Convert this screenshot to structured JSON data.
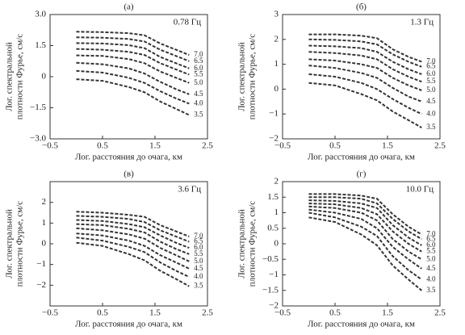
{
  "chart_data": [
    {
      "type": "line",
      "panel": "(а)",
      "annotation": "0.78 Гц",
      "xlabel": "Лог. расстояния до очага, км",
      "ylabel": [
        "Лог. спектральной",
        "плотности Фурье, см/с"
      ],
      "color": "#333333",
      "xlim": [
        -0.5,
        2.5
      ],
      "ylim": [
        -3,
        3
      ],
      "xticks": [
        {
          "value": -0.5,
          "label": "−0.5"
        },
        0.5,
        1.5,
        2.5
      ],
      "yticks": [
        {
          "value": -3,
          "label": "−3.0"
        },
        {
          "value": -1.5,
          "label": "−1.5"
        },
        0,
        1.5,
        {
          "value": 3,
          "label": "3.0"
        }
      ],
      "x": [
        0,
        0.5,
        1.0,
        1.3,
        1.6,
        1.9,
        2.15
      ],
      "series": [
        {
          "name": "7.0",
          "values": [
            2.17,
            2.15,
            2.1,
            2.0,
            1.6,
            1.3,
            1.05
          ]
        },
        {
          "name": "6.5",
          "values": [
            1.9,
            1.88,
            1.82,
            1.7,
            1.3,
            1.0,
            0.75
          ]
        },
        {
          "name": "6.0",
          "values": [
            1.62,
            1.6,
            1.52,
            1.38,
            0.95,
            0.65,
            0.4
          ]
        },
        {
          "name": "5.5",
          "values": [
            1.34,
            1.3,
            1.2,
            1.05,
            0.65,
            0.35,
            0.1
          ]
        },
        {
          "name": "5.0",
          "values": [
            1.03,
            1.0,
            0.85,
            0.65,
            0.25,
            -0.05,
            -0.3
          ]
        },
        {
          "name": "4.5",
          "values": [
            0.67,
            0.6,
            0.4,
            0.15,
            -0.25,
            -0.6,
            -0.85
          ]
        },
        {
          "name": "4.0",
          "values": [
            0.28,
            0.2,
            -0.05,
            -0.3,
            -0.7,
            -1.05,
            -1.3
          ]
        },
        {
          "name": "3.5",
          "values": [
            -0.12,
            -0.2,
            -0.5,
            -0.75,
            -1.2,
            -1.55,
            -1.85
          ]
        }
      ]
    },
    {
      "type": "line",
      "panel": "(б)",
      "annotation": "1.3 Гц",
      "xlabel": "Лог. расстояния до очага, км",
      "ylabel": [
        "Лог. спектральной",
        "плотности Фурье, см/с"
      ],
      "color": "#333333",
      "xlim": [
        -0.5,
        2.5
      ],
      "ylim": [
        -2,
        3
      ],
      "xticks": [
        {
          "value": -0.5,
          "label": "−0.5"
        },
        0.5,
        1.5,
        2.5
      ],
      "yticks": [
        {
          "value": -2,
          "label": "−2"
        },
        {
          "value": -1,
          "label": "−1"
        },
        0,
        1,
        2,
        3
      ],
      "x": [
        0,
        0.5,
        1.0,
        1.3,
        1.6,
        1.9,
        2.15
      ],
      "series": [
        {
          "name": "7.0",
          "values": [
            2.2,
            2.2,
            2.15,
            2.05,
            1.6,
            1.3,
            1.1
          ]
        },
        {
          "name": "6.5",
          "values": [
            2.0,
            1.98,
            1.92,
            1.8,
            1.4,
            1.1,
            0.9
          ]
        },
        {
          "name": "6.0",
          "values": [
            1.75,
            1.72,
            1.65,
            1.5,
            1.1,
            0.8,
            0.6
          ]
        },
        {
          "name": "5.5",
          "values": [
            1.5,
            1.45,
            1.35,
            1.2,
            0.8,
            0.5,
            0.3
          ]
        },
        {
          "name": "5.0",
          "values": [
            1.2,
            1.15,
            1.0,
            0.85,
            0.45,
            0.15,
            -0.05
          ]
        },
        {
          "name": "4.5",
          "values": [
            0.95,
            0.85,
            0.65,
            0.45,
            0.05,
            -0.3,
            -0.5
          ]
        },
        {
          "name": "4.0",
          "values": [
            0.6,
            0.5,
            0.25,
            0.0,
            -0.4,
            -0.75,
            -1.0
          ]
        },
        {
          "name": "3.5",
          "values": [
            0.25,
            0.15,
            -0.2,
            -0.45,
            -0.9,
            -1.25,
            -1.55
          ]
        }
      ]
    },
    {
      "type": "line",
      "panel": "(в)",
      "annotation": "3.6 Гц",
      "xlabel": "Лог. расстояния до очага, км",
      "ylabel": [
        "Лог. спектральной",
        "плотности Фурье, см/с"
      ],
      "color": "#333333",
      "xlim": [
        -0.5,
        2.5
      ],
      "ylim": [
        -3,
        3
      ],
      "xticks": [
        {
          "value": -0.5,
          "label": "−0.5"
        },
        0.5,
        1.5,
        2.5
      ],
      "yticks": [
        {
          "value": -2,
          "label": "−2"
        },
        {
          "value": -1,
          "label": "−1"
        },
        0,
        1,
        2
      ],
      "x": [
        0,
        0.5,
        1.0,
        1.3,
        1.6,
        1.9,
        2.15
      ],
      "series": [
        {
          "name": "7.0",
          "values": [
            1.55,
            1.5,
            1.4,
            1.3,
            0.9,
            0.6,
            0.35
          ]
        },
        {
          "name": "6.5",
          "values": [
            1.35,
            1.3,
            1.2,
            1.05,
            0.65,
            0.35,
            0.1
          ]
        },
        {
          "name": "6.0",
          "values": [
            1.15,
            1.1,
            0.95,
            0.8,
            0.4,
            0.05,
            -0.2
          ]
        },
        {
          "name": "5.5",
          "values": [
            0.95,
            0.9,
            0.72,
            0.55,
            0.1,
            -0.25,
            -0.5
          ]
        },
        {
          "name": "5.0",
          "values": [
            0.75,
            0.65,
            0.45,
            0.25,
            -0.2,
            -0.55,
            -0.85
          ]
        },
        {
          "name": "4.5",
          "values": [
            0.5,
            0.4,
            0.15,
            -0.1,
            -0.55,
            -0.9,
            -1.2
          ]
        },
        {
          "name": "4.0",
          "values": [
            0.3,
            0.15,
            -0.15,
            -0.4,
            -0.9,
            -1.3,
            -1.6
          ]
        },
        {
          "name": "3.5",
          "values": [
            0.05,
            -0.1,
            -0.5,
            -0.8,
            -1.3,
            -1.7,
            -2.05
          ]
        }
      ]
    },
    {
      "type": "line",
      "panel": "(г)",
      "annotation": "10.0 Гц",
      "xlabel": "Лог. расстояния до очага, км",
      "ylabel": [
        "Лог. спектральной",
        "плотности Фурье, см/с"
      ],
      "color": "#333333",
      "xlim": [
        -0.5,
        2.5
      ],
      "ylim": [
        -2,
        2
      ],
      "xticks": [
        {
          "value": -0.5,
          "label": "−0.5"
        },
        0.5,
        1.5,
        2.5
      ],
      "yticks": [
        {
          "value": -2,
          "label": "−2"
        },
        {
          "value": -1.5,
          "label": "−1.5"
        },
        {
          "value": -1,
          "label": "−1"
        },
        {
          "value": -0.5,
          "label": "−0.5"
        },
        0,
        0.5,
        1,
        1.5,
        2
      ],
      "x": [
        0,
        0.5,
        1.0,
        1.3,
        1.6,
        1.9,
        2.15
      ],
      "series": [
        {
          "name": "7.0",
          "values": [
            1.6,
            1.6,
            1.55,
            1.45,
            0.95,
            0.55,
            0.3
          ]
        },
        {
          "name": "6.5",
          "values": [
            1.5,
            1.5,
            1.45,
            1.3,
            0.8,
            0.4,
            0.15
          ]
        },
        {
          "name": "6.0",
          "values": [
            1.4,
            1.38,
            1.3,
            1.15,
            0.6,
            0.2,
            -0.05
          ]
        },
        {
          "name": "5.5",
          "values": [
            1.3,
            1.27,
            1.15,
            0.95,
            0.4,
            0.0,
            -0.25
          ]
        },
        {
          "name": "5.0",
          "values": [
            1.2,
            1.15,
            1.0,
            0.75,
            0.15,
            -0.25,
            -0.5
          ]
        },
        {
          "name": "4.5",
          "values": [
            1.1,
            1.0,
            0.8,
            0.5,
            -0.1,
            -0.5,
            -0.8
          ]
        },
        {
          "name": "4.0",
          "values": [
            1.0,
            0.85,
            0.55,
            0.25,
            -0.4,
            -0.85,
            -1.15
          ]
        },
        {
          "name": "3.5",
          "values": [
            0.85,
            0.7,
            0.3,
            -0.05,
            -0.7,
            -1.15,
            -1.5
          ]
        }
      ]
    }
  ]
}
